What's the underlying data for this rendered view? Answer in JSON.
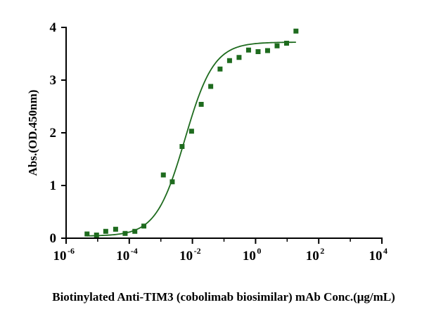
{
  "chart_data": {
    "type": "scatter",
    "title": "",
    "xlabel": "Biotinylated Anti-TIM3 (cobolimab biosimilar) mAb Conc.(μg/mL)",
    "ylabel": "Abs.(OD.450nm)",
    "x_scale": "log10",
    "xlim": [
      1e-06,
      10000
    ],
    "ylim": [
      0,
      4
    ],
    "x_ticks": [
      {
        "base": "10",
        "exp": "-6"
      },
      {
        "base": "10",
        "exp": "-4"
      },
      {
        "base": "10",
        "exp": "-2"
      },
      {
        "base": "10",
        "exp": "0"
      },
      {
        "base": "10",
        "exp": "2"
      },
      {
        "base": "10",
        "exp": "4"
      }
    ],
    "x_tick_values": [
      1e-06,
      0.0001,
      0.01,
      1,
      100,
      10000
    ],
    "y_ticks": [
      "0",
      "1",
      "2",
      "3",
      "4"
    ],
    "y_tick_values": [
      0,
      1,
      2,
      3,
      4
    ],
    "grid": false,
    "legend": "none",
    "color": "#1e6b1e",
    "series": [
      {
        "points": [
          {
            "x": 4.6e-06,
            "y": 0.08
          },
          {
            "x": 9.2e-06,
            "y": 0.06
          },
          {
            "x": 1.8e-05,
            "y": 0.13
          },
          {
            "x": 3.7e-05,
            "y": 0.17
          },
          {
            "x": 7.4e-05,
            "y": 0.09
          },
          {
            "x": 0.00015,
            "y": 0.13
          },
          {
            "x": 0.00029,
            "y": 0.23
          },
          {
            "x": 0.0012,
            "y": 1.2
          },
          {
            "x": 0.0023,
            "y": 1.07
          },
          {
            "x": 0.0047,
            "y": 1.74
          },
          {
            "x": 0.0094,
            "y": 2.03
          },
          {
            "x": 0.019,
            "y": 2.54
          },
          {
            "x": 0.038,
            "y": 2.88
          },
          {
            "x": 0.075,
            "y": 3.21
          },
          {
            "x": 0.15,
            "y": 3.37
          },
          {
            "x": 0.3,
            "y": 3.43
          },
          {
            "x": 0.6,
            "y": 3.57
          },
          {
            "x": 1.2,
            "y": 3.54
          },
          {
            "x": 2.4,
            "y": 3.56
          },
          {
            "x": 4.8,
            "y": 3.65
          },
          {
            "x": 9.6,
            "y": 3.7
          },
          {
            "x": 19,
            "y": 3.93
          }
        ],
        "fit": {
          "model": "4PL",
          "bottom": 0.04,
          "top": 3.72,
          "ec50": 0.0058,
          "hill": 0.95
        }
      }
    ]
  }
}
